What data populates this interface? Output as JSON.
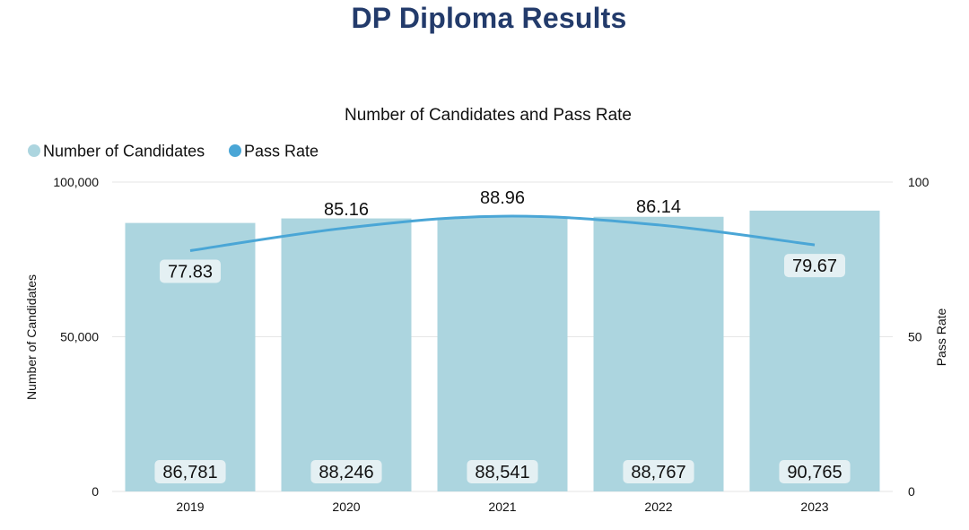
{
  "page": {
    "title": "DP Diploma Results"
  },
  "colors": {
    "title": "#233b6b",
    "bar": "#acd5df",
    "line": "#4aa6d6",
    "label_box": "#e4f0f3",
    "grid": "#e6e6e6"
  },
  "chart_data": {
    "type": "bar",
    "title": "Number of Candidates and Pass Rate",
    "categories": [
      "2019",
      "2020",
      "2021",
      "2022",
      "2023"
    ],
    "series": [
      {
        "name": "Number of Candidates",
        "type": "bar",
        "axis": "left",
        "values": [
          86781,
          88246,
          88541,
          88767,
          90765
        ],
        "labels": [
          "86,781",
          "88,246",
          "88,541",
          "88,767",
          "90,765"
        ]
      },
      {
        "name": "Pass Rate",
        "type": "line",
        "axis": "right",
        "values": [
          77.83,
          85.16,
          88.96,
          86.14,
          79.67
        ],
        "labels": [
          "77.83",
          "85.16",
          "88.96",
          "86.14",
          "79.67"
        ]
      }
    ],
    "ylabel": "Number of Candidates",
    "ylim": [
      0,
      100000
    ],
    "yticks": [
      "0",
      "50,000",
      "100,000"
    ],
    "ylabel_right": "Pass Rate",
    "ylim_right": [
      0,
      100
    ],
    "yticks_right": [
      "0",
      "50",
      "100"
    ],
    "grid": true,
    "legend": "top-left"
  }
}
